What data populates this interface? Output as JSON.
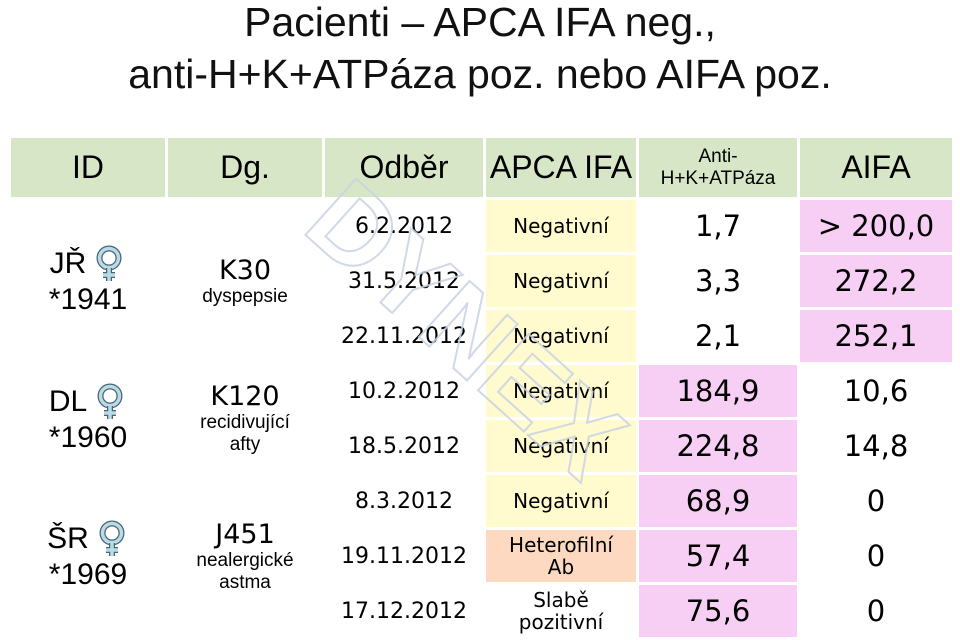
{
  "title": {
    "line1": "Pacienti – APCA IFA neg.,",
    "line2": "anti-H+K+ATPáza poz. nebo AIFA poz."
  },
  "headers": {
    "id": "ID",
    "dg": "Dg.",
    "odber": "Odběr",
    "apca": "APCA IFA",
    "anti_line1": "Anti-",
    "anti_line2": "H+K+ATPáza",
    "aifa": "AIFA"
  },
  "patients": [
    {
      "id": "JŘ",
      "born": "*1941",
      "dg_code": "K30",
      "dg_desc1": "dyspepsie",
      "dg_desc2": "",
      "samples": [
        {
          "date": "6.2.2012",
          "apca1": "Negativní",
          "apca2": "",
          "atp": "1,7",
          "aifa": "> 200,0"
        },
        {
          "date": "31.5.2012",
          "apca1": "Negativní",
          "apca2": "",
          "atp": "3,3",
          "aifa": "272,2"
        },
        {
          "date": "22.11.2012",
          "apca1": "Negativní",
          "apca2": "",
          "atp": "2,1",
          "aifa": "252,1"
        }
      ]
    },
    {
      "id": "DL",
      "born": "*1960",
      "dg_code": "K120",
      "dg_desc1": "recidivující",
      "dg_desc2": "afty",
      "samples": [
        {
          "date": "10.2.2012",
          "apca1": "Negativní",
          "apca2": "",
          "atp": "184,9",
          "aifa": "10,6"
        },
        {
          "date": "18.5.2012",
          "apca1": "Negativní",
          "apca2": "",
          "atp": "224,8",
          "aifa": "14,8"
        }
      ]
    },
    {
      "id": "ŠR",
      "born": "*1969",
      "dg_code": "J451",
      "dg_desc1": "nealergické",
      "dg_desc2": "astma",
      "samples": [
        {
          "date": "8.3.2012",
          "apca1": "Negativní",
          "apca2": "",
          "atp": "68,9",
          "aifa": "0"
        },
        {
          "date": "19.11.2012",
          "apca1": "Heterofilní",
          "apca2": "Ab",
          "atp": "57,4",
          "aifa": "0"
        },
        {
          "date": "17.12.2012",
          "apca1": "Slabě",
          "apca2": "pozitivní",
          "atp": "75,6",
          "aifa": "0"
        }
      ]
    }
  ],
  "watermark": "DYNEX",
  "colors": {
    "header_bg": "#d7e6c6",
    "negative_bg": "#fffbcf",
    "heterophile_bg": "#fdd9c1",
    "positive_bg": "#f8cff4",
    "female_symbol": "#b8dbe8"
  },
  "icons": {
    "gender": "female-symbol-icon"
  }
}
